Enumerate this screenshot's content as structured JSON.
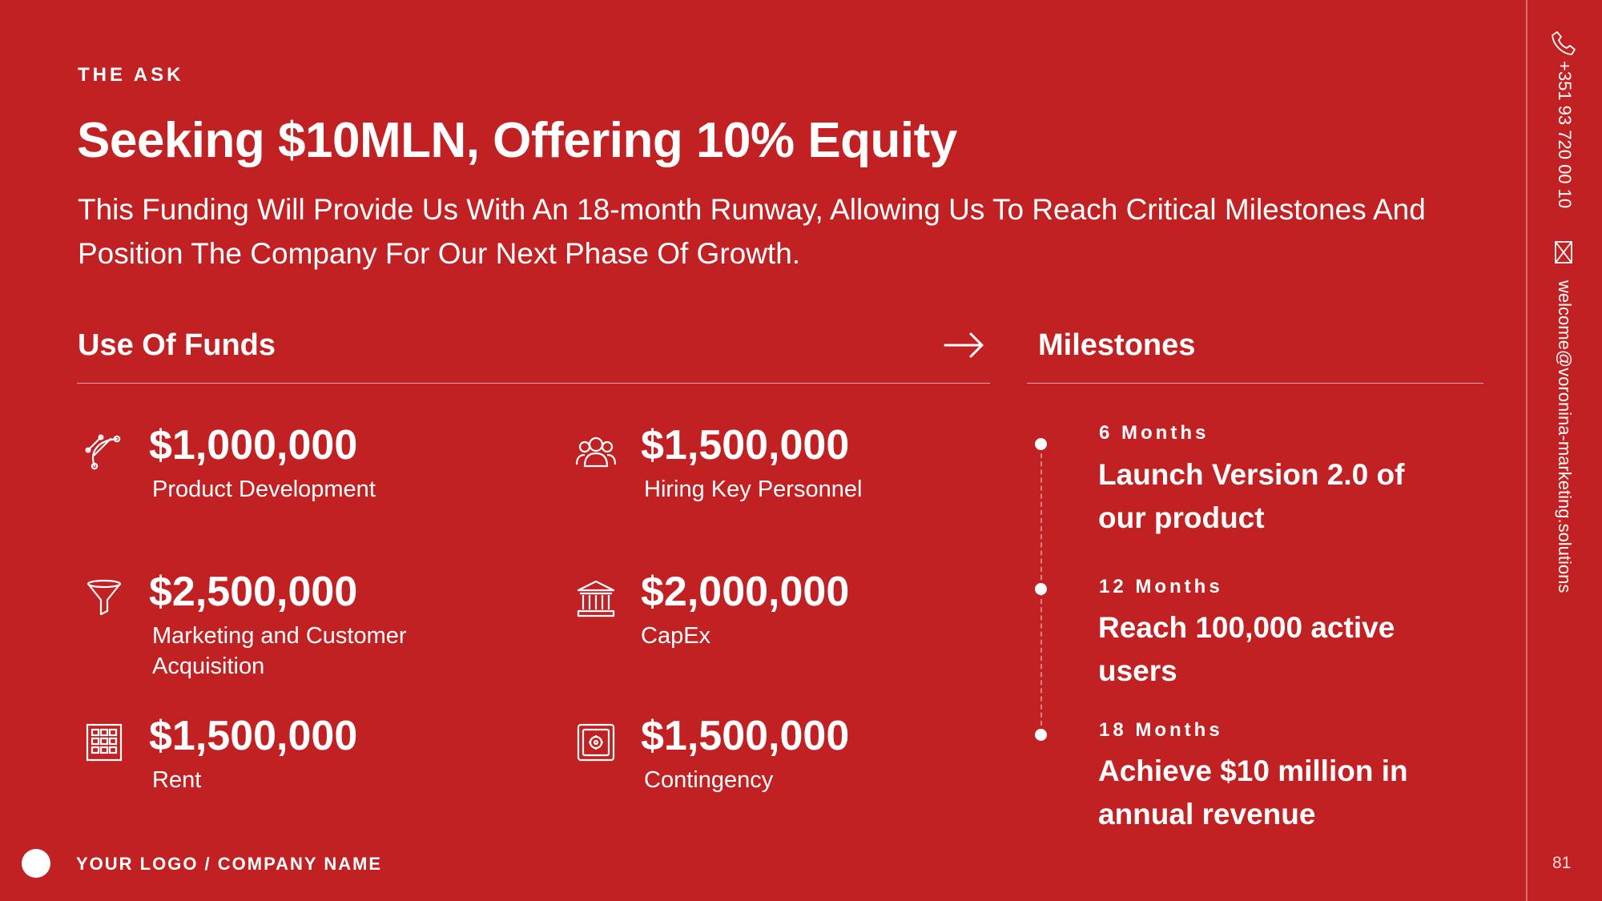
{
  "header": {
    "eyebrow": "THE ASK",
    "title": "Seeking $10MLN, Offering 10% Equity",
    "subtitle": "This Funding Will Provide Us With An 18-month Runway, Allowing Us To Reach Critical Milestones And Position The Company For Our Next Phase Of Growth."
  },
  "use_of_funds": {
    "heading": "Use Of Funds",
    "arrow_icon": "arrow-right-icon",
    "items": [
      {
        "amount": "$1,000,000",
        "label": "Product Development",
        "icon": "pen-tool-icon"
      },
      {
        "amount": "$1,500,000",
        "label": "Hiring Key Personnel",
        "icon": "people-icon"
      },
      {
        "amount": "$2,500,000",
        "label": "Marketing and Customer Acquisition",
        "icon": "funnel-icon"
      },
      {
        "amount": "$2,000,000",
        "label": "CapEx",
        "icon": "bank-icon"
      },
      {
        "amount": "$1,500,000",
        "label": "Rent",
        "icon": "building-icon"
      },
      {
        "amount": "$1,500,000",
        "label": "Contingency",
        "icon": "safe-icon"
      }
    ]
  },
  "milestones": {
    "heading": "Milestones",
    "items": [
      {
        "when": "6 Months",
        "text": "Launch Version 2.0 of our product"
      },
      {
        "when": "12 Months",
        "text": "Reach 100,000 active users"
      },
      {
        "when": "18 Months",
        "text": "Achieve $10 million in annual revenue"
      }
    ]
  },
  "sidebar": {
    "phone": "+351 93 720 00 10",
    "email": "welcome@voronina-marketing.solutions",
    "phone_icon": "phone-icon",
    "email_icon": "mail-icon"
  },
  "footer": {
    "logo_text": "YOUR LOGO / COMPANY NAME",
    "page_number": "81"
  },
  "colors": {
    "background": "#c12122",
    "text": "#ffffff"
  }
}
